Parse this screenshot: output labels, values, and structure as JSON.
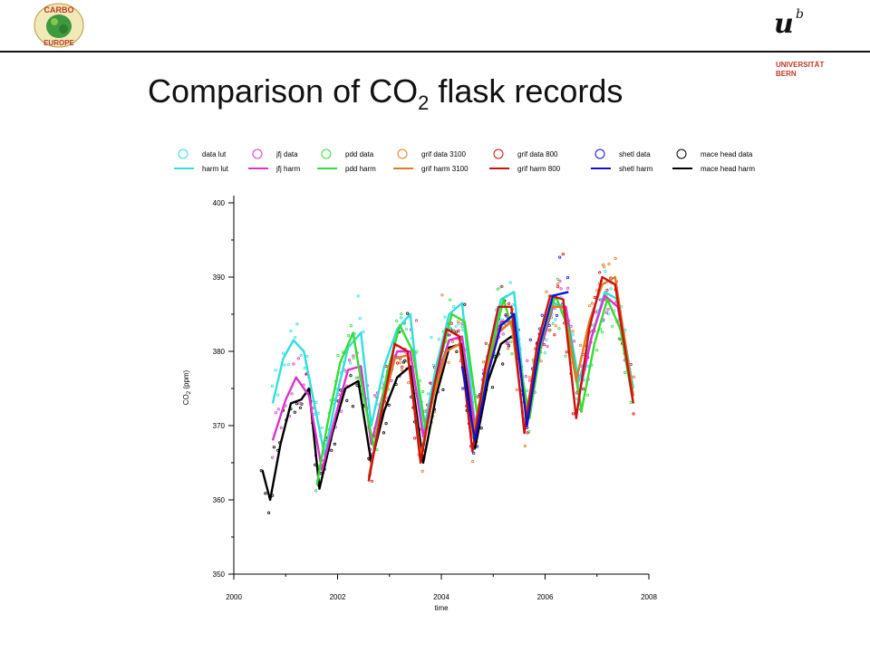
{
  "title_main": "Comparison of CO",
  "title_sub": "2",
  "title_end": " flask records",
  "logo_left": {
    "line1": "CARBO",
    "line2": "EUROPE"
  },
  "logo_right": {
    "u": "u",
    "b": "b",
    "line1": "UNIVERSITÄT",
    "line2": "BERN"
  },
  "chart_data": {
    "type": "scatter",
    "xlabel": "time",
    "ylabel_main": "CO",
    "ylabel_sub": "2",
    "ylabel_unit": " (ppm)",
    "xlim": [
      2000,
      2008
    ],
    "ylim": [
      350,
      400
    ],
    "xticks": [
      2000,
      2002,
      2004,
      2006,
      2008
    ],
    "yticks": [
      350,
      360,
      370,
      380,
      390,
      400
    ],
    "grid": false,
    "legend_position": "top",
    "legend": [
      {
        "data_label": "data lut",
        "harm_label": "harm lut",
        "color": "#33dddd"
      },
      {
        "data_label": "jfj data",
        "harm_label": "jfj harm",
        "color": "#dd33cc"
      },
      {
        "data_label": "pdd data",
        "harm_label": "pdd harm",
        "color": "#33dd33"
      },
      {
        "data_label": "grif data 3100",
        "harm_label": "grif harm 3100",
        "color": "#e07a22"
      },
      {
        "data_label": "grif data 800",
        "harm_label": "grif harm 800",
        "color": "#cc1111"
      },
      {
        "data_label": "shetl data",
        "harm_label": "shetl harm",
        "color": "#1111cc"
      },
      {
        "data_label": "mace head data",
        "harm_label": "mace head harm",
        "color": "#000000"
      }
    ],
    "series": [
      {
        "color": "#000000",
        "start": 2000.55,
        "end": 2005.35,
        "x": [
          2000.55,
          2000.7,
          2000.9,
          2001.1,
          2001.3,
          2001.45,
          2001.65,
          2001.9,
          2002.15,
          2002.4,
          2002.65,
          2002.9,
          2003.15,
          2003.4,
          2003.65,
          2003.9,
          2004.15,
          2004.4,
          2004.65,
          2004.9,
          2005.15,
          2005.35
        ],
        "y": [
          364,
          360,
          367.5,
          373,
          373.5,
          375,
          361.5,
          369,
          375,
          376,
          365,
          372,
          376.5,
          378,
          365,
          374,
          380.5,
          381,
          367,
          376,
          381,
          382
        ]
      },
      {
        "color": "#33dddd",
        "start": 2000.75,
        "end": 2007.7,
        "x": [
          2000.75,
          2000.95,
          2001.15,
          2001.35,
          2001.55,
          2001.75,
          2001.95,
          2002.2,
          2002.45,
          2002.65,
          2002.9,
          2003.15,
          2003.4,
          2003.65,
          2003.9,
          2004.15,
          2004.4,
          2004.65,
          2004.9,
          2005.15,
          2005.4,
          2005.65,
          2005.9,
          2006.15,
          2006.4,
          2006.65,
          2006.9,
          2007.15,
          2007.4,
          2007.7
        ],
        "y": [
          373,
          379,
          381.5,
          380,
          373,
          366,
          373,
          380.5,
          382.5,
          370,
          378,
          383,
          385,
          369,
          378,
          385,
          386.5,
          370,
          379,
          387,
          388,
          371,
          381,
          386.5,
          386,
          376,
          382,
          388,
          387,
          375
        ]
      },
      {
        "color": "#dd33cc",
        "start": 2000.75,
        "end": 2007.7,
        "x": [
          2000.75,
          2001,
          2001.2,
          2001.45,
          2001.7,
          2001.95,
          2002.2,
          2002.45,
          2002.65,
          2002.9,
          2003.15,
          2003.4,
          2003.65,
          2003.9,
          2004.15,
          2004.4,
          2004.65,
          2004.9,
          2005.15,
          2005.4,
          2005.65,
          2005.9,
          2006.15,
          2006.4,
          2006.65,
          2006.9,
          2007.15,
          2007.4,
          2007.7
        ],
        "y": [
          368,
          373.5,
          376.5,
          374,
          364,
          371,
          377.5,
          378,
          367.5,
          375,
          380,
          380,
          368.5,
          376,
          381.5,
          382,
          369.5,
          378,
          384,
          384,
          372,
          380,
          386,
          386,
          374,
          382,
          387.5,
          386,
          374
        ]
      },
      {
        "color": "#33dd33",
        "start": 2001.6,
        "end": 2007.7,
        "x": [
          2001.6,
          2001.8,
          2002.05,
          2002.3,
          2002.5,
          2002.7,
          2002.95,
          2003.2,
          2003.45,
          2003.7,
          2003.95,
          2004.2,
          2004.45,
          2004.7,
          2004.95,
          2005.2,
          2005.45,
          2005.7,
          2005.95,
          2006.2,
          2006.45,
          2006.7,
          2006.95,
          2007.2,
          2007.45,
          2007.7
        ],
        "y": [
          362,
          370,
          378.5,
          382.5,
          374,
          367,
          377,
          383.5,
          380,
          369.5,
          378,
          385,
          384,
          371,
          380,
          387,
          381,
          371,
          382,
          387.5,
          383,
          372,
          381,
          387,
          383,
          373
        ]
      },
      {
        "color": "#e07a22",
        "start": 2002.6,
        "end": 2007.7,
        "x": [
          2002.6,
          2002.85,
          2003.1,
          2003.35,
          2003.6,
          2003.85,
          2004.1,
          2004.35,
          2004.6,
          2004.85,
          2005.1,
          2005.35,
          2005.6,
          2005.85,
          2006.1,
          2006.35,
          2006.6,
          2006.85,
          2007.1,
          2007.35,
          2007.7
        ],
        "y": [
          363,
          372,
          379,
          379.5,
          366,
          374,
          380,
          381,
          368.5,
          377,
          382.5,
          384,
          370,
          380,
          386,
          386,
          376,
          384,
          389,
          390,
          374
        ]
      },
      {
        "color": "#cc1111",
        "start": 2002.6,
        "end": 2007.7,
        "x": [
          2002.6,
          2002.85,
          2003.1,
          2003.35,
          2003.6,
          2003.85,
          2004.1,
          2004.35,
          2004.6,
          2004.85,
          2005.1,
          2005.35,
          2005.6,
          2005.85,
          2006.1,
          2006.35,
          2006.6,
          2006.85,
          2007.1,
          2007.35,
          2007.7
        ],
        "y": [
          362.5,
          372,
          381,
          380,
          365,
          375,
          383,
          382,
          366.5,
          378,
          386,
          386,
          369,
          381,
          387.5,
          387,
          371,
          383,
          390,
          389,
          373
        ]
      },
      {
        "color": "#1111cc",
        "start": 2004.4,
        "end": 2006.45,
        "x": [
          2004.4,
          2004.65,
          2004.9,
          2005.15,
          2005.4,
          2005.65,
          2005.9,
          2006.15,
          2006.45
        ],
        "y": [
          378,
          368,
          377,
          383.5,
          385,
          370,
          381,
          387.5,
          388
        ]
      }
    ]
  }
}
